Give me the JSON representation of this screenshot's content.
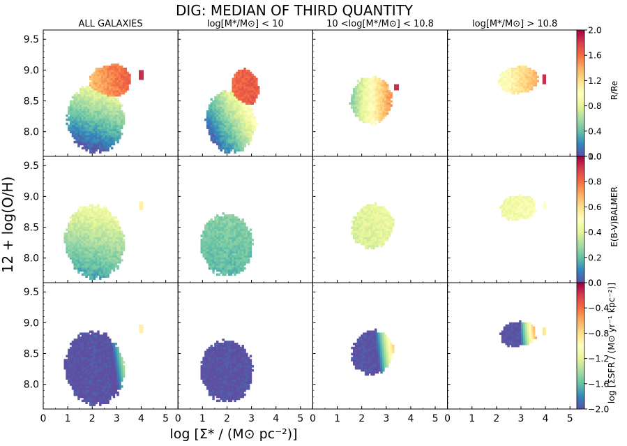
{
  "chart_data": {
    "type": "heatmap",
    "title": "DIG: MEDIAN OF THIRD QUANTITY",
    "xlabel": "log [Σ* / (M⊙ pc⁻²)]",
    "ylabel": "12 + log(O/H)",
    "xlim": [
      0,
      5.5
    ],
    "ylim": [
      7.6,
      9.65
    ],
    "x_ticks": [
      0,
      1,
      2,
      3,
      4,
      5
    ],
    "y_ticks": [
      8.0,
      8.5,
      9.0,
      9.5
    ],
    "x_tick_labels": [
      "0",
      "1",
      "2",
      "3",
      "4",
      "5"
    ],
    "y_tick_labels": [
      "8.0",
      "8.5",
      "9.0",
      "9.5"
    ],
    "column_titles": [
      "ALL GALAXIES",
      "log[M*/M⊙] < 10",
      "10 <log[M*/M⊙] < 10.8",
      "log[M*/M⊙] > 10.8"
    ],
    "rows": [
      {
        "quantity": "R/Re",
        "colorbar_label": "R/Re",
        "vmin": 0.0,
        "vmax": 2.0,
        "ticks": [
          0.0,
          0.4,
          0.8,
          1.2,
          1.6,
          2.0
        ],
        "tick_labels": [
          "0.0",
          "0.4",
          "0.8",
          "1.2",
          "1.6",
          "2.0"
        ]
      },
      {
        "quantity": "E(B-V)_BALMER",
        "colorbar_label": "E(B-V)BALMER",
        "vmin": 0.0,
        "vmax": 1.0,
        "ticks": [
          0.0,
          0.2,
          0.4,
          0.6,
          0.8,
          1.0
        ],
        "tick_labels": [
          "0.0",
          "0.2",
          "0.4",
          "0.6",
          "0.8",
          "1.0"
        ]
      },
      {
        "quantity": "log Σ_SFR",
        "colorbar_label": "log [ΣSFR / (M⊙ yr⁻¹ kpc⁻²)]",
        "vmin": -2.0,
        "vmax": 0.0,
        "ticks": [
          -2.0,
          -1.6,
          -1.2,
          -0.8,
          -0.4,
          0.0
        ],
        "tick_labels": [
          "−2.0",
          "−1.6",
          "−1.2",
          "−0.8",
          "−0.4",
          "0.0"
        ]
      }
    ],
    "colormap": [
      "#5e4fa2",
      "#3288bd",
      "#66c2a5",
      "#abdda4",
      "#e6f598",
      "#ffffbf",
      "#fee08b",
      "#fdae61",
      "#f46d43",
      "#d53e4f",
      "#9e0142"
    ],
    "series": [
      {
        "row": 0,
        "col": 0,
        "blobs": [
          {
            "x": 2.1,
            "y": 8.2,
            "rx": 1.15,
            "ry": 0.55,
            "tilt": 0.35,
            "v0": 0.45,
            "vx": 0.1,
            "vy": 0.8
          },
          {
            "x": 2.7,
            "y": 8.8,
            "rx": 0.85,
            "ry": 0.28,
            "tilt": 0.15,
            "v0": 1.5,
            "vx": 0.2,
            "vy": 0.1
          }
        ],
        "extra": [
          {
            "x": 4.0,
            "y": 8.92,
            "w": 0.2,
            "h": 0.16,
            "v": 1.85
          }
        ]
      },
      {
        "row": 0,
        "col": 1,
        "blobs": [
          {
            "x": 2.1,
            "y": 8.15,
            "rx": 1.0,
            "ry": 0.5,
            "tilt": 0.35,
            "v0": 0.55,
            "vx": 0.4,
            "vy": 0.6
          },
          {
            "x": 2.7,
            "y": 8.7,
            "rx": 0.55,
            "ry": 0.3,
            "tilt": 0.2,
            "v0": 1.65,
            "vx": 0.05,
            "vy": 0.0
          }
        ],
        "extra": []
      },
      {
        "row": 0,
        "col": 2,
        "blobs": [
          {
            "x": 2.35,
            "y": 8.5,
            "rx": 0.85,
            "ry": 0.38,
            "tilt": 0.35,
            "v0": 1.0,
            "vx": 0.6,
            "vy": 0.0
          }
        ],
        "extra": [
          {
            "x": 3.42,
            "y": 8.72,
            "w": 0.2,
            "h": 0.1,
            "v": 1.85
          }
        ]
      },
      {
        "row": 0,
        "col": 3,
        "blobs": [
          {
            "x": 2.85,
            "y": 8.83,
            "rx": 0.8,
            "ry": 0.22,
            "tilt": 0.1,
            "v0": 1.15,
            "vx": 0.3,
            "vy": 0.0
          }
        ],
        "extra": [
          {
            "x": 3.95,
            "y": 8.85,
            "w": 0.15,
            "h": 0.16,
            "v": 1.85
          }
        ]
      },
      {
        "row": 1,
        "col": 0,
        "blobs": [
          {
            "x": 2.05,
            "y": 8.25,
            "rx": 1.2,
            "ry": 0.6,
            "tilt": 0.35,
            "v0": 0.3,
            "vx": 0.02,
            "vy": 0.25
          }
        ],
        "extra": [
          {
            "x": 4.0,
            "y": 8.85,
            "w": 0.16,
            "h": 0.14,
            "v": 0.55
          }
        ]
      },
      {
        "row": 1,
        "col": 1,
        "blobs": [
          {
            "x": 1.95,
            "y": 8.2,
            "rx": 1.05,
            "ry": 0.5,
            "tilt": 0.35,
            "v0": 0.22,
            "vx": 0.0,
            "vy": 0.06
          }
        ],
        "extra": []
      },
      {
        "row": 1,
        "col": 2,
        "blobs": [
          {
            "x": 2.4,
            "y": 8.5,
            "rx": 0.85,
            "ry": 0.35,
            "tilt": 0.35,
            "v0": 0.4,
            "vx": 0.02,
            "vy": 0.05
          }
        ],
        "extra": []
      },
      {
        "row": 1,
        "col": 3,
        "blobs": [
          {
            "x": 2.85,
            "y": 8.8,
            "rx": 0.75,
            "ry": 0.2,
            "tilt": 0.1,
            "v0": 0.45,
            "vx": 0.02,
            "vy": 0.0
          }
        ],
        "extra": [
          {
            "x": 3.97,
            "y": 8.85,
            "w": 0.12,
            "h": 0.12,
            "v": 0.5
          }
        ]
      },
      {
        "row": 2,
        "col": 0,
        "blobs": [
          {
            "x": 2.05,
            "y": 8.25,
            "rx": 1.2,
            "ry": 0.6,
            "tilt": 0.35,
            "v0": -2.0,
            "vx": 0.0,
            "vy": 0.0
          }
        ],
        "grad": {
          "x0": 2.75,
          "k": 0.8
        },
        "extra": [
          {
            "x": 4.0,
            "y": 8.9,
            "w": 0.18,
            "h": 0.14,
            "v": -0.9
          }
        ]
      },
      {
        "row": 2,
        "col": 1,
        "blobs": [
          {
            "x": 1.95,
            "y": 8.2,
            "rx": 1.05,
            "ry": 0.5,
            "tilt": 0.35,
            "v0": -2.0,
            "vx": 0.0,
            "vy": 0.0
          }
        ],
        "extra": []
      },
      {
        "row": 2,
        "col": 2,
        "blobs": [
          {
            "x": 2.4,
            "y": 8.5,
            "rx": 0.85,
            "ry": 0.35,
            "tilt": 0.35,
            "v0": -2.0,
            "vx": 0.0,
            "vy": 0.0
          }
        ],
        "grad": {
          "x0": 2.55,
          "k": 0.9
        },
        "extra": []
      },
      {
        "row": 2,
        "col": 3,
        "blobs": [
          {
            "x": 2.85,
            "y": 8.8,
            "rx": 0.75,
            "ry": 0.2,
            "tilt": 0.1,
            "v0": -2.0,
            "vx": 0.0,
            "vy": 0.0
          }
        ],
        "grad": {
          "x0": 2.95,
          "k": 1.1
        },
        "extra": [
          {
            "x": 3.95,
            "y": 8.86,
            "w": 0.14,
            "h": 0.13,
            "v": -0.85
          }
        ]
      }
    ]
  }
}
